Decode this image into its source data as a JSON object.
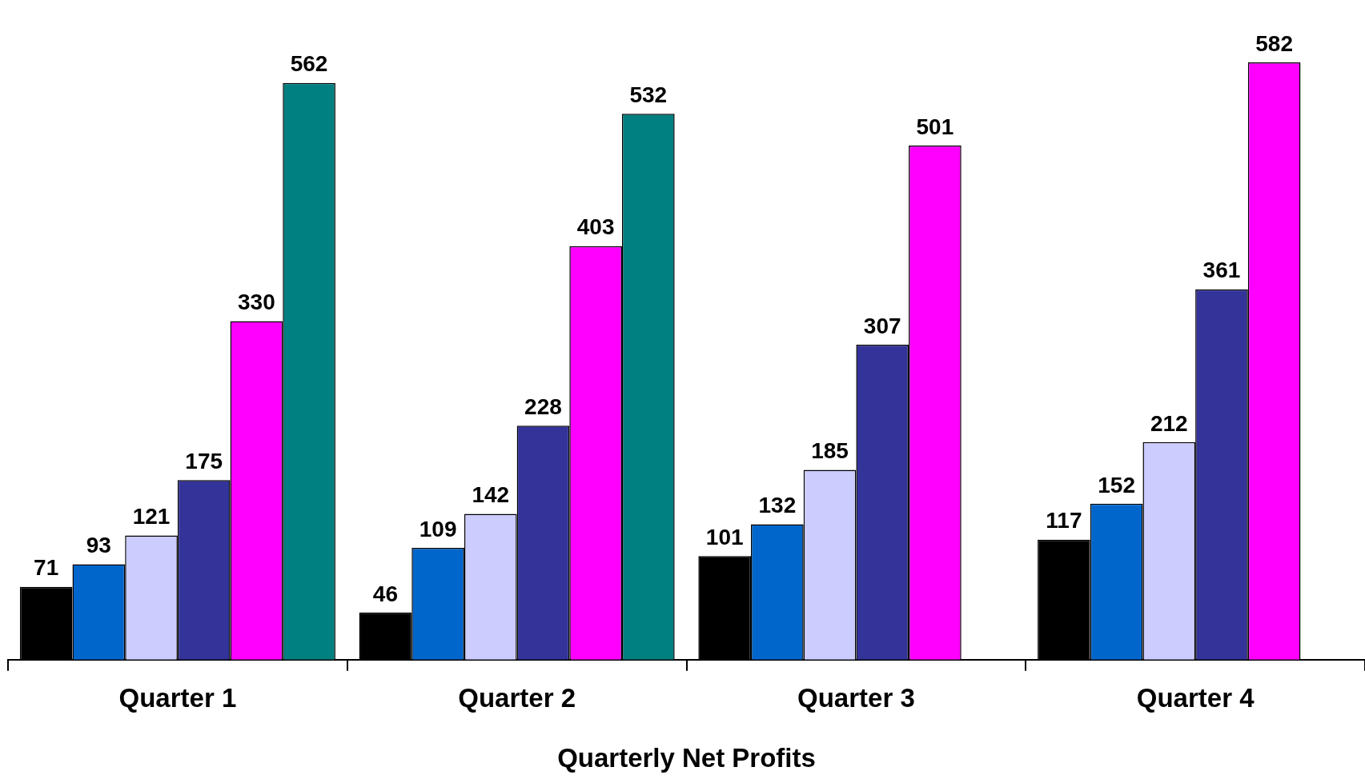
{
  "chart_data": {
    "type": "bar",
    "xlabel": "Quarterly Net Profits",
    "categories": [
      "Quarter 1",
      "Quarter 2",
      "Quarter 3",
      "Quarter 4"
    ],
    "series": [
      {
        "color": "#000000",
        "values": [
          71,
          46,
          101,
          117
        ]
      },
      {
        "color": "#0066cc",
        "values": [
          93,
          109,
          132,
          152
        ]
      },
      {
        "color": "#ccccff",
        "values": [
          121,
          142,
          185,
          212
        ]
      },
      {
        "color": "#333399",
        "values": [
          175,
          228,
          307,
          361
        ]
      },
      {
        "color": "#ff00ff",
        "values": [
          330,
          403,
          501,
          582
        ]
      },
      {
        "color": "#008080",
        "values": [
          562,
          532,
          null,
          null
        ]
      }
    ],
    "data_labels": true,
    "grid": false,
    "legend": false
  }
}
